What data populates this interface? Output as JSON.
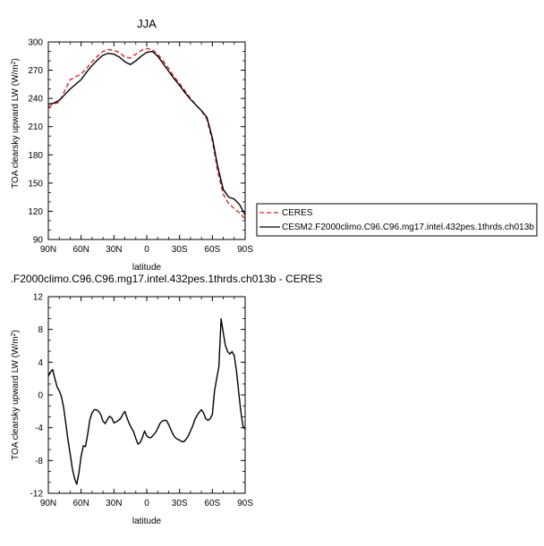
{
  "chart_data": [
    {
      "type": "line",
      "title": "JJA",
      "xlabel": "latitude",
      "ylabel": "TOA clearsky upward LW (W/m²)",
      "ylabel_base": "TOA clearsky upward LW (W/m",
      "ylabel_sup": "2",
      "ylabel_end": ")",
      "xlim": [
        90,
        -90
      ],
      "ylim": [
        90,
        300
      ],
      "xticks": [
        90,
        60,
        30,
        0,
        -30,
        -60,
        -90
      ],
      "xtick_labels": [
        "90N",
        "60N",
        "30N",
        "0",
        "30S",
        "60S",
        "90S"
      ],
      "yticks": [
        90,
        120,
        150,
        180,
        210,
        240,
        270,
        300
      ],
      "ytick_labels": [
        "90",
        "120",
        "150",
        "180",
        "210",
        "240",
        "270",
        "300"
      ],
      "legend_position": "right",
      "series": [
        {
          "name": "CERES",
          "color": "#e02020",
          "dash": "dashed",
          "x": [
            90,
            85,
            80,
            75,
            70,
            65,
            60,
            55,
            50,
            45,
            40,
            35,
            30,
            25,
            20,
            15,
            10,
            5,
            0,
            -5,
            -10,
            -15,
            -20,
            -25,
            -30,
            -35,
            -40,
            -45,
            -50,
            -55,
            -60,
            -65,
            -70,
            -75,
            -80,
            -85,
            -90
          ],
          "values": [
            231,
            234,
            236,
            248,
            260,
            263,
            266,
            272,
            279,
            285,
            290,
            292,
            291,
            289,
            284,
            283,
            287,
            291,
            293,
            292,
            287,
            280,
            272,
            263,
            256,
            248,
            240,
            233,
            227,
            218,
            195,
            162,
            138,
            128,
            123,
            118,
            112
          ]
        },
        {
          "name": "CESM2.F2000climo.C96.C96.mg17.intel.432pes.1thrds.ch013b",
          "color": "#000000",
          "dash": "solid",
          "x": [
            90,
            85,
            80,
            75,
            70,
            65,
            60,
            55,
            50,
            45,
            40,
            35,
            30,
            25,
            20,
            15,
            10,
            5,
            0,
            -5,
            -10,
            -15,
            -20,
            -25,
            -30,
            -35,
            -40,
            -45,
            -50,
            -55,
            -60,
            -65,
            -70,
            -75,
            -80,
            -85,
            -90
          ],
          "values": [
            234,
            235,
            238,
            244,
            250,
            255,
            260,
            268,
            275,
            281,
            286,
            288,
            287,
            284,
            279,
            276,
            280,
            285,
            289,
            290,
            285,
            277,
            269,
            261,
            254,
            246,
            239,
            233,
            227,
            220,
            198,
            167,
            143,
            135,
            133,
            127,
            116
          ]
        }
      ]
    },
    {
      "type": "line",
      "title": ".F2000climo.C96.C96.mg17.intel.432pes.1thrds.ch013b - CERES",
      "xlabel": "latitude",
      "ylabel": "TOA clearsky upward LW (W/m²)",
      "ylabel_base": "TOA clearsky upward LW (W/m",
      "ylabel_sup": "2",
      "ylabel_end": ")",
      "xlim": [
        90,
        -90
      ],
      "ylim": [
        -12,
        12
      ],
      "xticks": [
        90,
        60,
        30,
        0,
        -30,
        -60,
        -90
      ],
      "xtick_labels": [
        "90N",
        "60N",
        "30N",
        "0",
        "30S",
        "60S",
        "90S"
      ],
      "yticks": [
        -12,
        -8,
        -4,
        0,
        4,
        8,
        12
      ],
      "ytick_labels": [
        "-12",
        "-8",
        "-4",
        "0",
        "4",
        "8",
        "12"
      ],
      "series": [
        {
          "color": "#000000",
          "x": [
            90,
            88,
            86,
            84,
            82,
            80,
            78,
            76,
            74,
            72,
            70,
            68,
            66,
            64,
            62,
            60,
            58,
            56,
            54,
            52,
            50,
            48,
            46,
            44,
            42,
            40,
            38,
            36,
            34,
            32,
            30,
            28,
            26,
            24,
            22,
            20,
            18,
            16,
            14,
            12,
            10,
            8,
            6,
            4,
            2,
            0,
            -2,
            -4,
            -6,
            -8,
            -10,
            -12,
            -14,
            -16,
            -18,
            -20,
            -22,
            -24,
            -26,
            -28,
            -30,
            -32,
            -34,
            -36,
            -38,
            -40,
            -42,
            -44,
            -46,
            -48,
            -50,
            -52,
            -54,
            -56,
            -58,
            -60,
            -62,
            -64,
            -66,
            -68,
            -70,
            -72,
            -74,
            -76,
            -78,
            -80,
            -82,
            -84,
            -86,
            -88,
            -90
          ],
          "values": [
            2.3,
            2.8,
            3.1,
            2.0,
            1.0,
            0.5,
            -0.2,
            -1.5,
            -3.5,
            -5.5,
            -7.2,
            -9.0,
            -10.2,
            -10.9,
            -9.5,
            -7.5,
            -6.2,
            -6.3,
            -4.8,
            -3.0,
            -2.2,
            -1.8,
            -1.8,
            -2.0,
            -2.4,
            -3.2,
            -3.5,
            -3.0,
            -2.6,
            -2.8,
            -3.4,
            -3.3,
            -3.1,
            -2.9,
            -2.4,
            -2.0,
            -2.8,
            -3.5,
            -4.0,
            -4.5,
            -5.3,
            -6.0,
            -5.8,
            -5.2,
            -4.4,
            -5.0,
            -5.2,
            -5.2,
            -4.9,
            -4.6,
            -4.1,
            -3.5,
            -3.2,
            -3.1,
            -3.1,
            -3.6,
            -4.2,
            -4.8,
            -5.2,
            -5.4,
            -5.5,
            -5.7,
            -5.7,
            -5.4,
            -5.0,
            -4.4,
            -3.8,
            -3.0,
            -2.5,
            -2.1,
            -1.8,
            -2.2,
            -2.9,
            -3.1,
            -2.9,
            -2.4,
            0.5,
            2.0,
            3.5,
            9.3,
            7.6,
            6.0,
            5.3,
            5.0,
            5.3,
            4.8,
            3.0,
            0.5,
            -2.0,
            -3.8,
            -4.2
          ]
        }
      ]
    }
  ]
}
